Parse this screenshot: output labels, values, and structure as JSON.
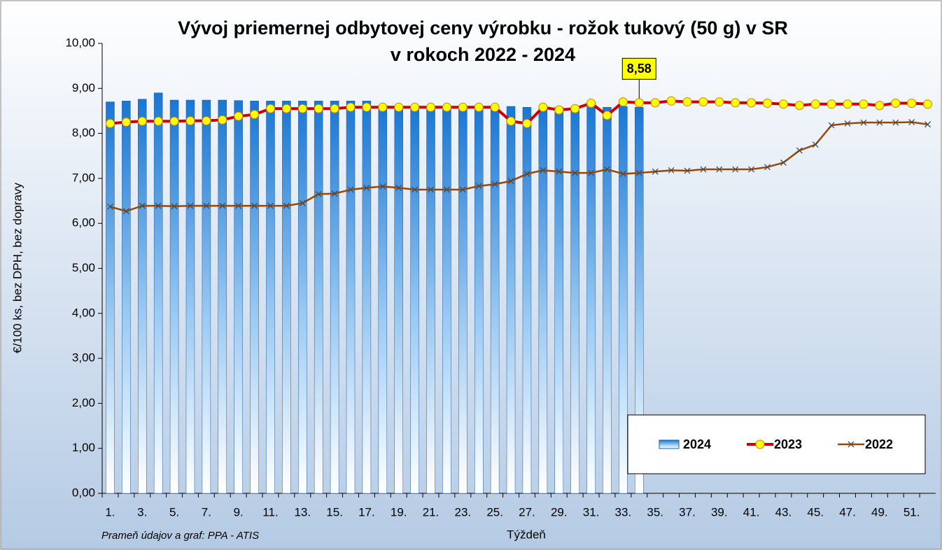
{
  "chart_data": {
    "type": "bar_line",
    "title": [
      "Vývoj priemernej odbytovej ceny výrobku - rožok tukový (50 g) v SR",
      "v rokoch 2022 - 2024"
    ],
    "x_label": "Týždeň",
    "y_label": "€/100 ks, bez DPH, bez dopravy",
    "source": "Prameň údajov a graf: PPA - ATIS",
    "categories": [
      "1.",
      null,
      "3.",
      null,
      "5.",
      null,
      "7.",
      null,
      "9.",
      null,
      "11.",
      null,
      "13.",
      null,
      "15.",
      null,
      "17.",
      null,
      "19.",
      null,
      "21.",
      null,
      "23.",
      null,
      "25.",
      null,
      "27.",
      null,
      "29.",
      null,
      "31.",
      null,
      "33.",
      null,
      "35.",
      null,
      "37.",
      null,
      "39.",
      null,
      "41.",
      null,
      "43.",
      null,
      "45.",
      null,
      "47.",
      null,
      "49.",
      null,
      "51.",
      null
    ],
    "ylim": [
      0,
      10
    ],
    "yticks": [
      {
        "value": 0,
        "label": "0,00"
      },
      {
        "value": 1,
        "label": "1,00"
      },
      {
        "value": 2,
        "label": "2,00"
      },
      {
        "value": 3,
        "label": "3,00"
      },
      {
        "value": 4,
        "label": "4,00"
      },
      {
        "value": 5,
        "label": "5,00"
      },
      {
        "value": 6,
        "label": "6,00"
      },
      {
        "value": 7,
        "label": "7,00"
      },
      {
        "value": 8,
        "label": "8,00"
      },
      {
        "value": 9,
        "label": "9,00"
      },
      {
        "value": 10,
        "label": "10,00"
      }
    ],
    "legend": "lower right",
    "series": [
      {
        "name": "2024",
        "type": "bar",
        "color": "#2f86d8",
        "values": [
          8.7,
          8.72,
          8.76,
          8.9,
          8.74,
          8.74,
          8.74,
          8.74,
          8.73,
          8.72,
          8.72,
          8.72,
          8.72,
          8.72,
          8.72,
          8.72,
          8.72,
          8.62,
          8.6,
          8.6,
          8.6,
          8.6,
          8.6,
          8.6,
          8.6,
          8.6,
          8.58,
          8.58,
          8.58,
          8.58,
          8.6,
          8.58,
          8.6,
          8.58,
          null,
          null,
          null,
          null,
          null,
          null,
          null,
          null,
          null,
          null,
          null,
          null,
          null,
          null,
          null,
          null,
          null,
          null
        ],
        "value_labels": [
          null,
          null,
          null,
          null,
          null,
          null,
          null,
          null,
          null,
          null,
          null,
          null,
          null,
          null,
          null,
          null,
          null,
          null,
          null,
          null,
          null,
          null,
          null,
          null,
          null,
          null,
          null,
          null,
          null,
          null,
          null,
          null,
          null,
          "8,58",
          null,
          null,
          null,
          null,
          null,
          null,
          null,
          null,
          null,
          null,
          null,
          null,
          null,
          null,
          null,
          null,
          null,
          null
        ]
      },
      {
        "name": "2023",
        "type": "line",
        "color": "#cc0000",
        "marker_color": "#ffff00",
        "values": [
          8.22,
          8.25,
          8.27,
          8.27,
          8.27,
          8.28,
          8.28,
          8.3,
          8.38,
          8.42,
          8.55,
          8.55,
          8.55,
          8.55,
          8.55,
          8.58,
          8.58,
          8.58,
          8.58,
          8.58,
          8.58,
          8.58,
          8.58,
          8.58,
          8.58,
          8.27,
          8.22,
          8.58,
          8.52,
          8.55,
          8.67,
          8.4,
          8.7,
          8.68,
          8.68,
          8.72,
          8.7,
          8.7,
          8.7,
          8.68,
          8.68,
          8.67,
          8.65,
          8.62,
          8.65,
          8.65,
          8.65,
          8.65,
          8.62,
          8.67,
          8.67,
          8.65
        ]
      },
      {
        "name": "2022",
        "type": "line",
        "color": "#974706",
        "values": [
          6.37,
          6.27,
          6.39,
          6.39,
          6.38,
          6.39,
          6.39,
          6.39,
          6.39,
          6.39,
          6.39,
          6.39,
          6.45,
          6.65,
          6.66,
          6.75,
          6.79,
          6.82,
          6.79,
          6.75,
          6.75,
          6.75,
          6.75,
          6.83,
          6.87,
          6.94,
          7.1,
          7.18,
          7.15,
          7.12,
          7.12,
          7.2,
          7.1,
          7.12,
          7.15,
          7.18,
          7.17,
          7.2,
          7.2,
          7.2,
          7.2,
          7.25,
          7.35,
          7.62,
          7.75,
          8.18,
          8.22,
          8.24,
          8.24,
          8.24,
          8.25,
          8.2
        ]
      }
    ]
  }
}
